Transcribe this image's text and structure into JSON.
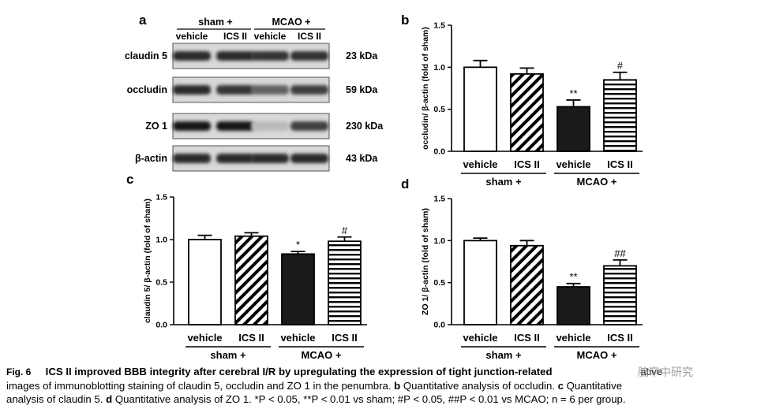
{
  "panel_labels": {
    "a": "a",
    "b": "b",
    "c": "c",
    "d": "d"
  },
  "blot": {
    "group_headers": [
      "sham +",
      "MCAO +"
    ],
    "lane_labels": [
      "vehicle",
      "ICS II",
      "vehicle",
      "ICS II"
    ],
    "rows": [
      {
        "name": "claudin 5",
        "size": "23 kDa",
        "intensity": [
          0.85,
          0.85,
          0.8,
          0.82
        ]
      },
      {
        "name": "occludin",
        "size": "59 kDa",
        "intensity": [
          0.85,
          0.8,
          0.6,
          0.75
        ]
      },
      {
        "name": "ZO 1",
        "size": "230 kDa",
        "intensity": [
          0.95,
          0.95,
          0.2,
          0.75
        ]
      },
      {
        "name": "β-actin",
        "size": "43 kDa",
        "intensity": [
          0.85,
          0.85,
          0.85,
          0.85
        ]
      }
    ]
  },
  "chart_data": [
    {
      "id": "b",
      "type": "bar",
      "categories": [
        "vehicle",
        "ICS II",
        "vehicle",
        "ICS II"
      ],
      "groups": [
        {
          "label": "sham +",
          "span": [
            0,
            1
          ]
        },
        {
          "label": "MCAO +",
          "span": [
            2,
            3
          ]
        }
      ],
      "values": [
        1.0,
        0.92,
        0.53,
        0.85
      ],
      "errors": [
        0.08,
        0.07,
        0.08,
        0.09
      ],
      "annotations": [
        "",
        "",
        "**",
        "#"
      ],
      "ylabel": "occludin/ β-actin (fold of sham)",
      "ylim": [
        0,
        1.5
      ],
      "yticks": [
        0.0,
        0.5,
        1.0,
        1.5
      ],
      "styles": [
        "open",
        "diagonal",
        "solid",
        "horizontal"
      ]
    },
    {
      "id": "c",
      "type": "bar",
      "categories": [
        "vehicle",
        "ICS II",
        "vehicle",
        "ICS II"
      ],
      "groups": [
        {
          "label": "sham +",
          "span": [
            0,
            1
          ]
        },
        {
          "label": "MCAO +",
          "span": [
            2,
            3
          ]
        }
      ],
      "values": [
        1.0,
        1.04,
        0.83,
        0.98
      ],
      "errors": [
        0.05,
        0.04,
        0.03,
        0.05
      ],
      "annotations": [
        "",
        "",
        "*",
        "#"
      ],
      "ylabel": "claudin 5/ β-actin (fold of sham)",
      "ylim": [
        0,
        1.5
      ],
      "yticks": [
        0.0,
        0.5,
        1.0,
        1.5
      ],
      "styles": [
        "open",
        "diagonal",
        "solid",
        "horizontal"
      ]
    },
    {
      "id": "d",
      "type": "bar",
      "categories": [
        "vehicle",
        "ICS II",
        "vehicle",
        "ICS II"
      ],
      "groups": [
        {
          "label": "sham +",
          "span": [
            0,
            1
          ]
        },
        {
          "label": "MCAO +",
          "span": [
            2,
            3
          ]
        }
      ],
      "values": [
        1.0,
        0.94,
        0.45,
        0.7
      ],
      "errors": [
        0.03,
        0.06,
        0.04,
        0.07
      ],
      "annotations": [
        "",
        "",
        "**",
        "##"
      ],
      "ylabel": "ZO 1/ β-actin (fold of sham)",
      "ylim": [
        0,
        1.5
      ],
      "yticks": [
        0.0,
        0.5,
        1.0,
        1.5
      ],
      "styles": [
        "open",
        "diagonal",
        "solid",
        "horizontal"
      ]
    }
  ],
  "caption": {
    "fig": "Fig. 6",
    "title": "ICS II improved BBB integrity after cerebral I/R by upregulating the expression of tight junction-related",
    "line1_rest": "ative",
    "line2a": "images of immunoblotting staining of claudin 5, occludin and ZO 1 in the penumbra.",
    "b": "b",
    "line2b": "Quantitative analysis of occludin.",
    "c": "c",
    "line2c": "Quantitative",
    "line3a": "analysis of claudin 5.",
    "d": "d",
    "line3b": "Quantitative analysis of ZO 1. *P < 0.05, **P < 0.01 vs sham; #P < 0.05, ##P < 0.01 vs MCAO; n = 6 per group."
  },
  "watermark": "脑卒中研究"
}
